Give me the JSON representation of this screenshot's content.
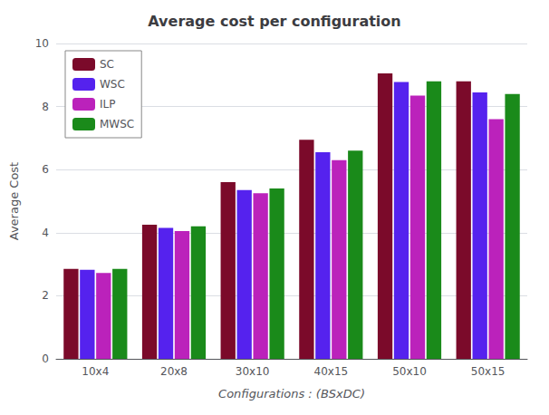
{
  "chart_data": {
    "type": "bar",
    "title": "Average cost per configuration",
    "xlabel": "Configurations : (BSxDC)",
    "ylabel": "Average Cost",
    "categories": [
      "10x4",
      "20x8",
      "30x10",
      "40x15",
      "50x10",
      "50x15"
    ],
    "series": [
      {
        "name": "SC",
        "color": "#7B0A2A",
        "values": [
          2.85,
          4.25,
          5.6,
          6.95,
          9.05,
          8.8
        ]
      },
      {
        "name": "WSC",
        "color": "#5522EE",
        "values": [
          2.82,
          4.15,
          5.35,
          6.55,
          8.78,
          8.45
        ]
      },
      {
        "name": "ILP",
        "color": "#BB22BB",
        "values": [
          2.72,
          4.05,
          5.25,
          6.3,
          8.35,
          7.6
        ]
      },
      {
        "name": "MWSC",
        "color": "#1A8A1A",
        "values": [
          2.85,
          4.2,
          5.4,
          6.6,
          8.8,
          8.4
        ]
      }
    ],
    "ylim": [
      0,
      10
    ],
    "yticks": [
      0,
      2,
      4,
      6,
      8,
      10
    ],
    "grid": true,
    "legend": "upper left"
  }
}
